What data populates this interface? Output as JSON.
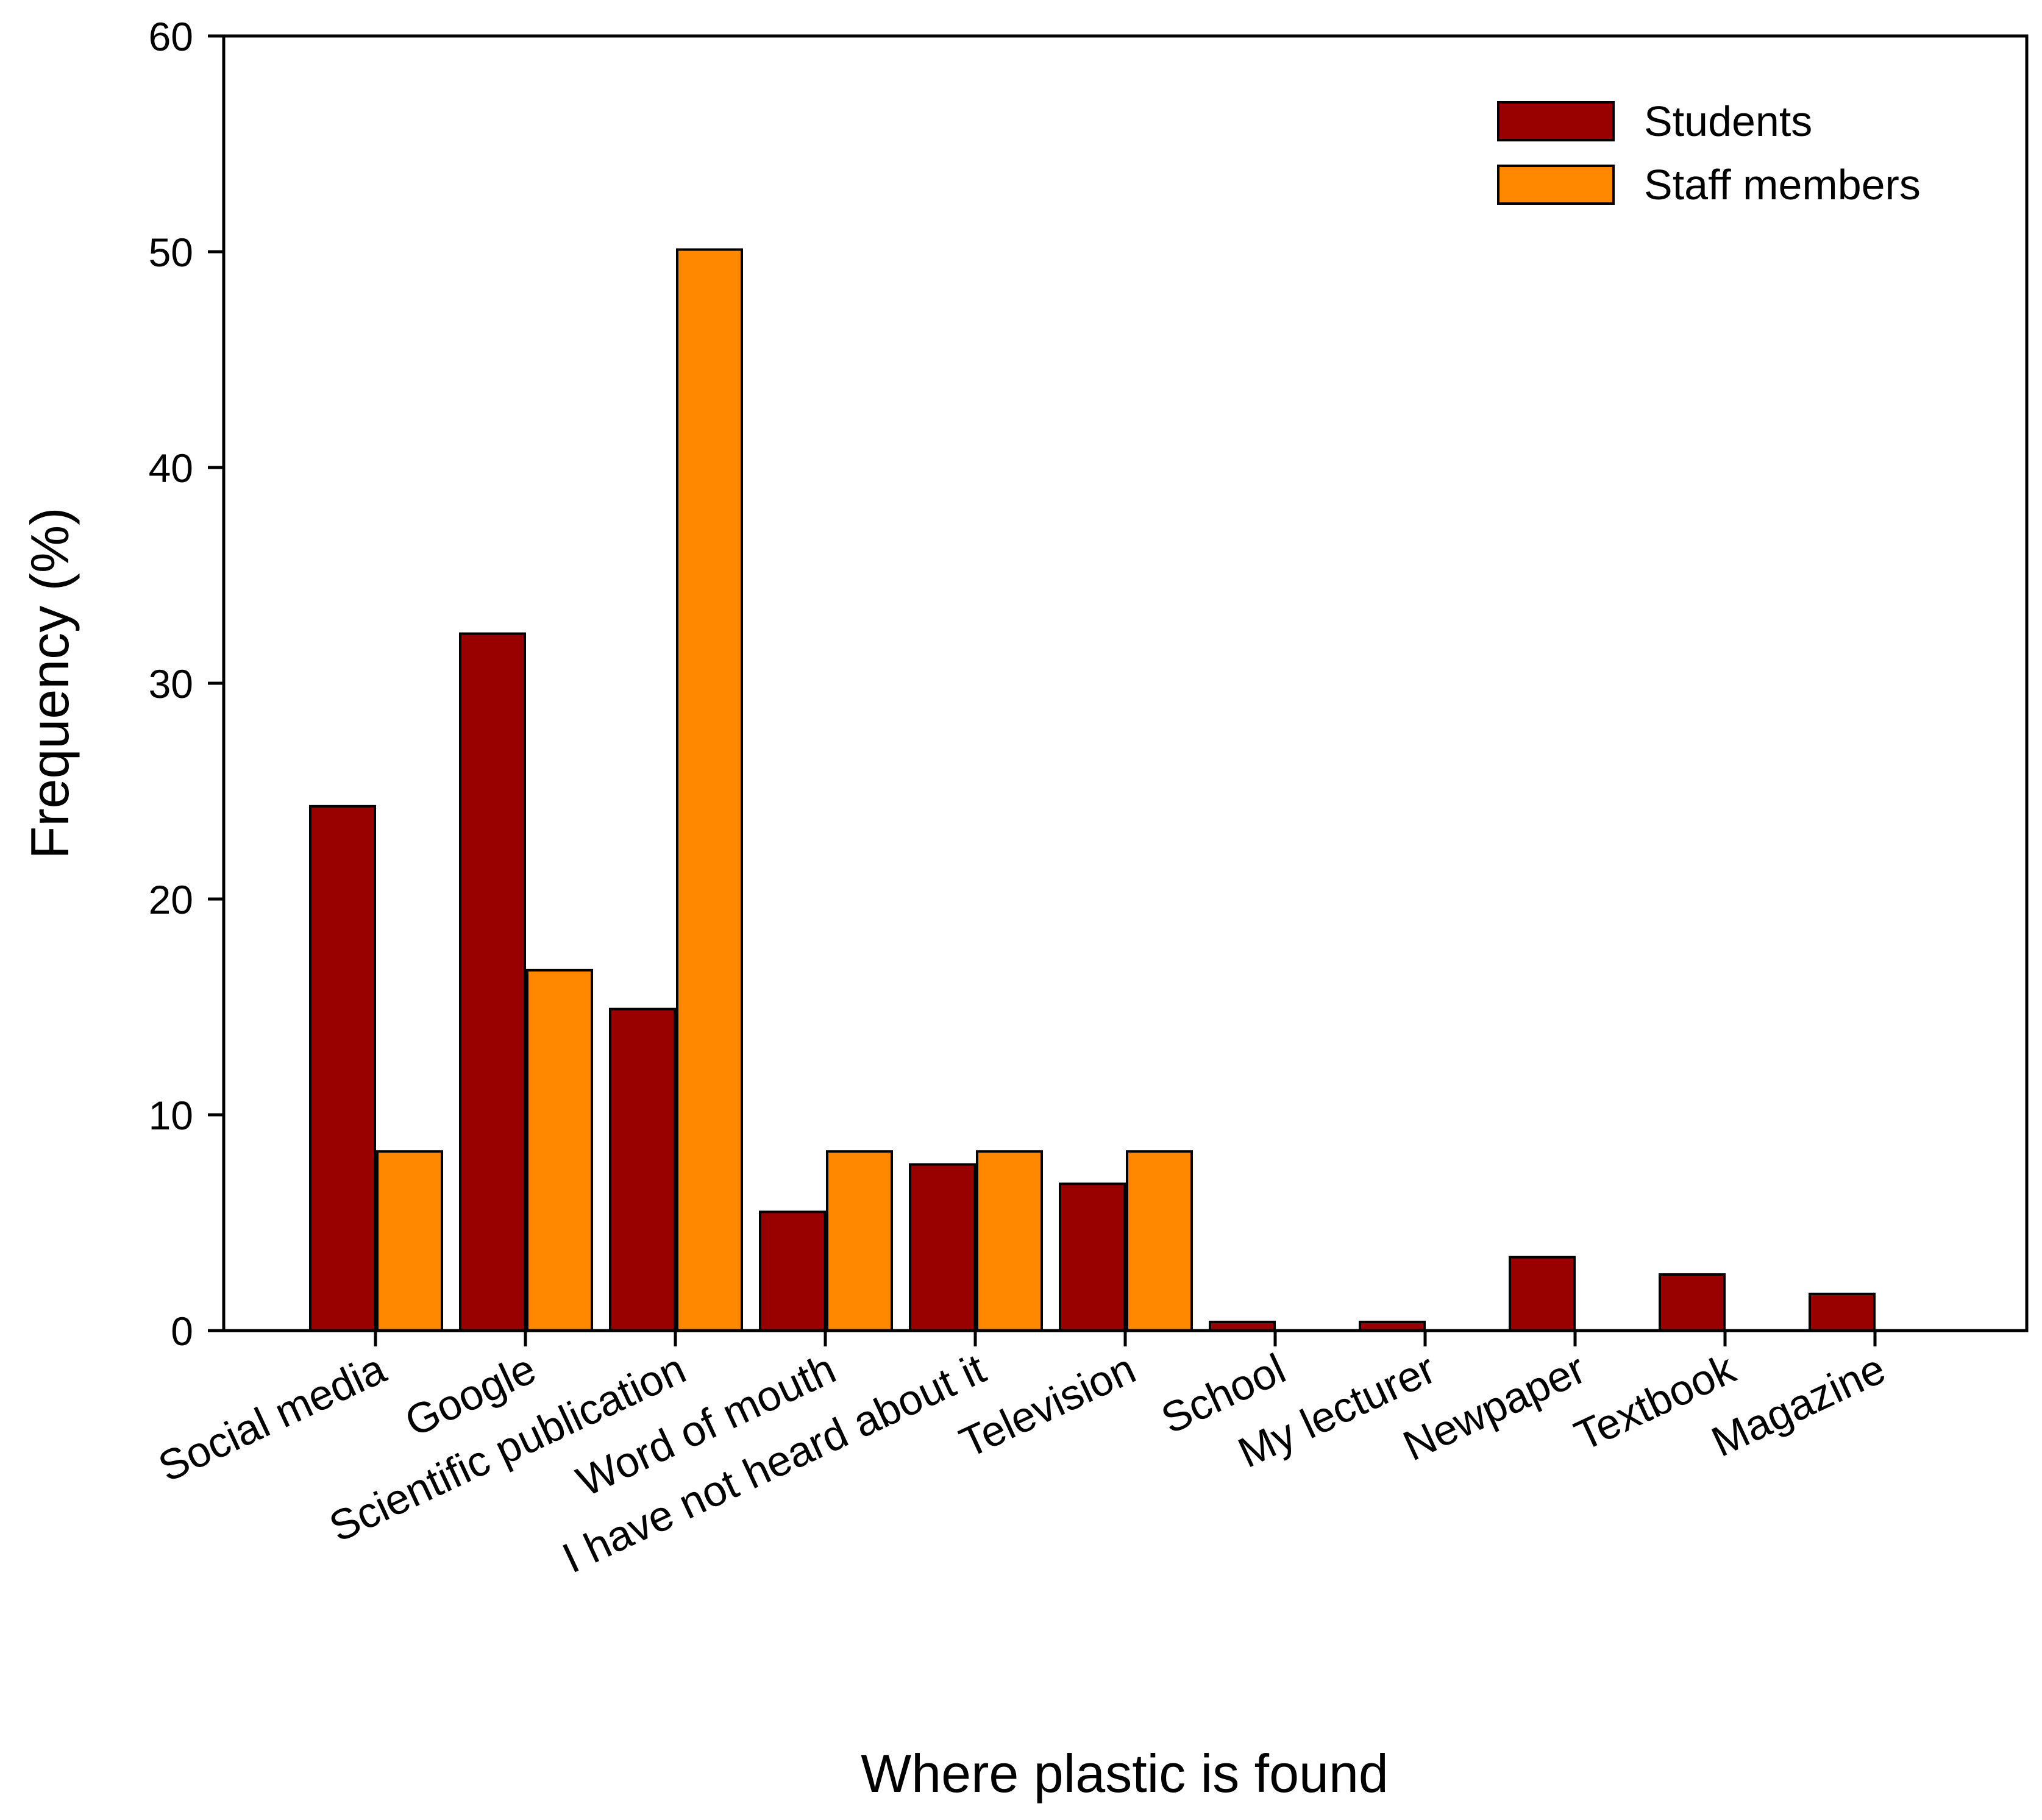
{
  "chart_data": {
    "type": "bar",
    "title": "",
    "xlabel": "Where plastic is found",
    "ylabel": "Frequency (%)",
    "ylim": [
      0,
      60
    ],
    "yticks": [
      0,
      10,
      20,
      30,
      40,
      50,
      60
    ],
    "grid": false,
    "legend_position": "top-right",
    "categories": [
      "Social media",
      "Google",
      "Scientific publication",
      "Word of mouth",
      "I have not heard about it",
      "Television",
      "School",
      "My lecturer",
      "Newpaper",
      "Textbook",
      "Magazine"
    ],
    "series": [
      {
        "name": "Students",
        "color": "#990000",
        "values": [
          24.3,
          32.3,
          14.9,
          5.5,
          7.7,
          6.8,
          0.4,
          0.4,
          3.4,
          2.6,
          1.7
        ]
      },
      {
        "name": "Staff members",
        "color": "#ff8800",
        "values": [
          8.3,
          16.7,
          50.1,
          8.3,
          8.3,
          8.3,
          0,
          0,
          0,
          0,
          0
        ]
      }
    ]
  }
}
